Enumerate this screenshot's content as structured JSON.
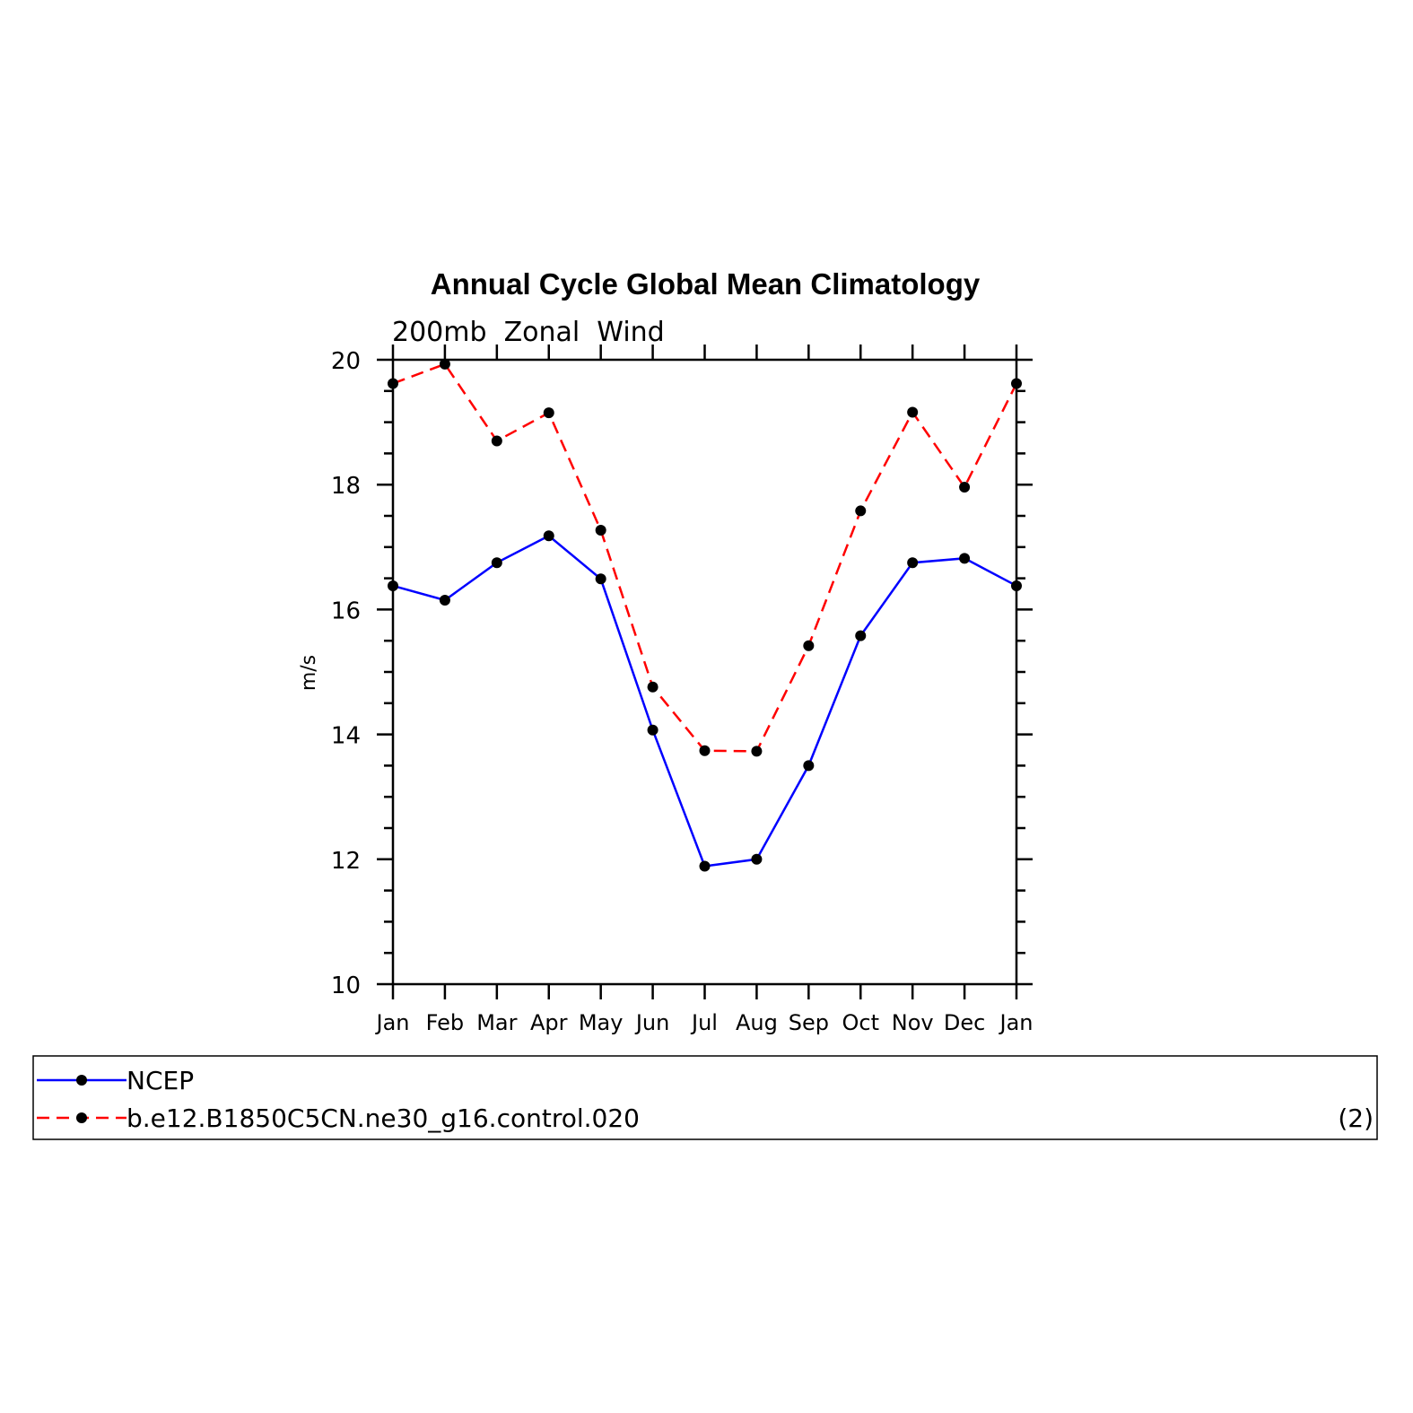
{
  "chart_data": {
    "type": "line",
    "title": "Annual Cycle Global Mean Climatology",
    "subtitle": "200mb  Zonal  Wind",
    "ylabel": "m/s",
    "xlabel": "",
    "categories": [
      "Jan",
      "Feb",
      "Mar",
      "Apr",
      "May",
      "Jun",
      "Jul",
      "Aug",
      "Sep",
      "Oct",
      "Nov",
      "Dec",
      "Jan"
    ],
    "ylim": [
      10,
      20
    ],
    "yticks": [
      "10",
      "12",
      "14",
      "16",
      "18",
      "20"
    ],
    "series": [
      {
        "name": "NCEP",
        "color": "#0000ff",
        "dash": "solid",
        "values": [
          16.38,
          16.15,
          16.75,
          17.18,
          16.49,
          14.07,
          11.89,
          12.0,
          13.5,
          15.58,
          16.75,
          16.82,
          16.38
        ]
      },
      {
        "name": "b.e12.B1850C5CN.ne30_g16.control.020",
        "color": "#ff0000",
        "dash": "dashed",
        "values": [
          19.62,
          19.93,
          18.7,
          19.15,
          17.27,
          14.76,
          13.74,
          13.73,
          15.42,
          17.58,
          19.16,
          17.96,
          19.62
        ]
      }
    ],
    "legend_position": "bottom",
    "legend_note": "(2)",
    "grid": false
  }
}
